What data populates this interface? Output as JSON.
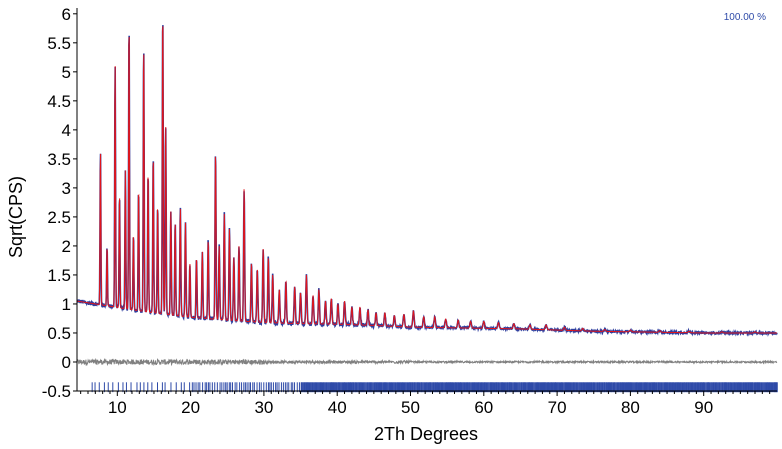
{
  "chart_data": {
    "type": "line",
    "title": "",
    "xlabel": "2Th Degrees",
    "ylabel": "Sqrt(CPS)",
    "xlim": [
      4.5,
      100
    ],
    "ylim": [
      -0.5,
      6.1
    ],
    "x_ticks": [
      "10",
      "20",
      "30",
      "40",
      "50",
      "60",
      "70",
      "80",
      "90"
    ],
    "y_ticks": [
      "6",
      "5.5",
      "5",
      "4.5",
      "4",
      "3.5",
      "3",
      "2.5",
      "2",
      "1.5",
      "1",
      "0.5",
      "0",
      "-0.5"
    ],
    "corner_label": "100.00 %",
    "grid": false,
    "legend": "none",
    "background": {
      "x": [
        4.5,
        8,
        12,
        16,
        20,
        25,
        30,
        35,
        40,
        45,
        50,
        55,
        60,
        65,
        70,
        75,
        80,
        85,
        90,
        95,
        100
      ],
      "y": [
        1.05,
        0.98,
        0.9,
        0.83,
        0.77,
        0.72,
        0.68,
        0.66,
        0.65,
        0.63,
        0.6,
        0.59,
        0.58,
        0.57,
        0.55,
        0.53,
        0.52,
        0.51,
        0.5,
        0.5,
        0.5
      ]
    },
    "peaks": {
      "position": [
        7.7,
        8.6,
        9.7,
        10.3,
        11.1,
        11.6,
        12.2,
        12.9,
        13.6,
        14.2,
        14.9,
        15.5,
        16.2,
        16.6,
        17.3,
        17.9,
        18.6,
        19.3,
        19.9,
        20.8,
        21.6,
        22.4,
        23.4,
        23.9,
        24.6,
        25.3,
        25.9,
        26.6,
        27.3,
        28.3,
        29.1,
        29.9,
        30.6,
        31.2,
        32.1,
        33.0,
        34.2,
        35.0,
        35.8,
        36.7,
        37.5,
        38.4,
        39.2,
        40.1,
        41.0,
        42.0,
        43.1,
        44.2,
        45.3,
        46.5,
        47.8,
        49.1,
        50.4,
        51.8,
        53.3,
        54.8,
        56.5,
        58.2,
        60.0,
        62.0,
        64.1,
        66.3,
        68.5,
        71.0,
        73.5,
        76.5,
        80.0,
        84.0,
        88.0,
        92.5,
        97.0
      ],
      "intensity": [
        3.65,
        2.0,
        5.15,
        2.9,
        3.3,
        5.85,
        2.2,
        3.0,
        5.45,
        3.3,
        3.55,
        2.7,
        6.05,
        4.1,
        2.6,
        2.4,
        2.65,
        2.4,
        1.7,
        1.8,
        1.9,
        2.1,
        3.62,
        2.0,
        2.55,
        2.3,
        1.8,
        2.0,
        3.0,
        1.7,
        1.6,
        1.95,
        1.8,
        1.5,
        1.25,
        1.4,
        1.3,
        1.2,
        1.5,
        1.15,
        1.25,
        1.05,
        1.1,
        1.0,
        1.05,
        0.95,
        0.95,
        0.9,
        0.85,
        0.85,
        0.8,
        0.82,
        0.88,
        0.78,
        0.78,
        0.74,
        0.72,
        0.7,
        0.7,
        0.68,
        0.66,
        0.64,
        0.64,
        0.6,
        0.58,
        0.56,
        0.55,
        0.54,
        0.53,
        0.52,
        0.52
      ]
    },
    "series": [
      {
        "role": "observed",
        "color": "#2e3e9e",
        "values_note": ""
      },
      {
        "role": "calculated",
        "color": "#e0151b"
      },
      {
        "role": "difference",
        "color": "#808080",
        "baseline": 0.0
      },
      {
        "role": "reflection-positions",
        "color": "#2e4aa8",
        "band_y": [
          -0.52,
          -0.35
        ],
        "start_x": 6.5
      }
    ],
    "colors": {
      "observed": "#2e3e9e",
      "calculated": "#e0151b",
      "difference": "#808080",
      "ticks": "#2e4aa8",
      "corner_label": "#2e4aa8"
    }
  }
}
